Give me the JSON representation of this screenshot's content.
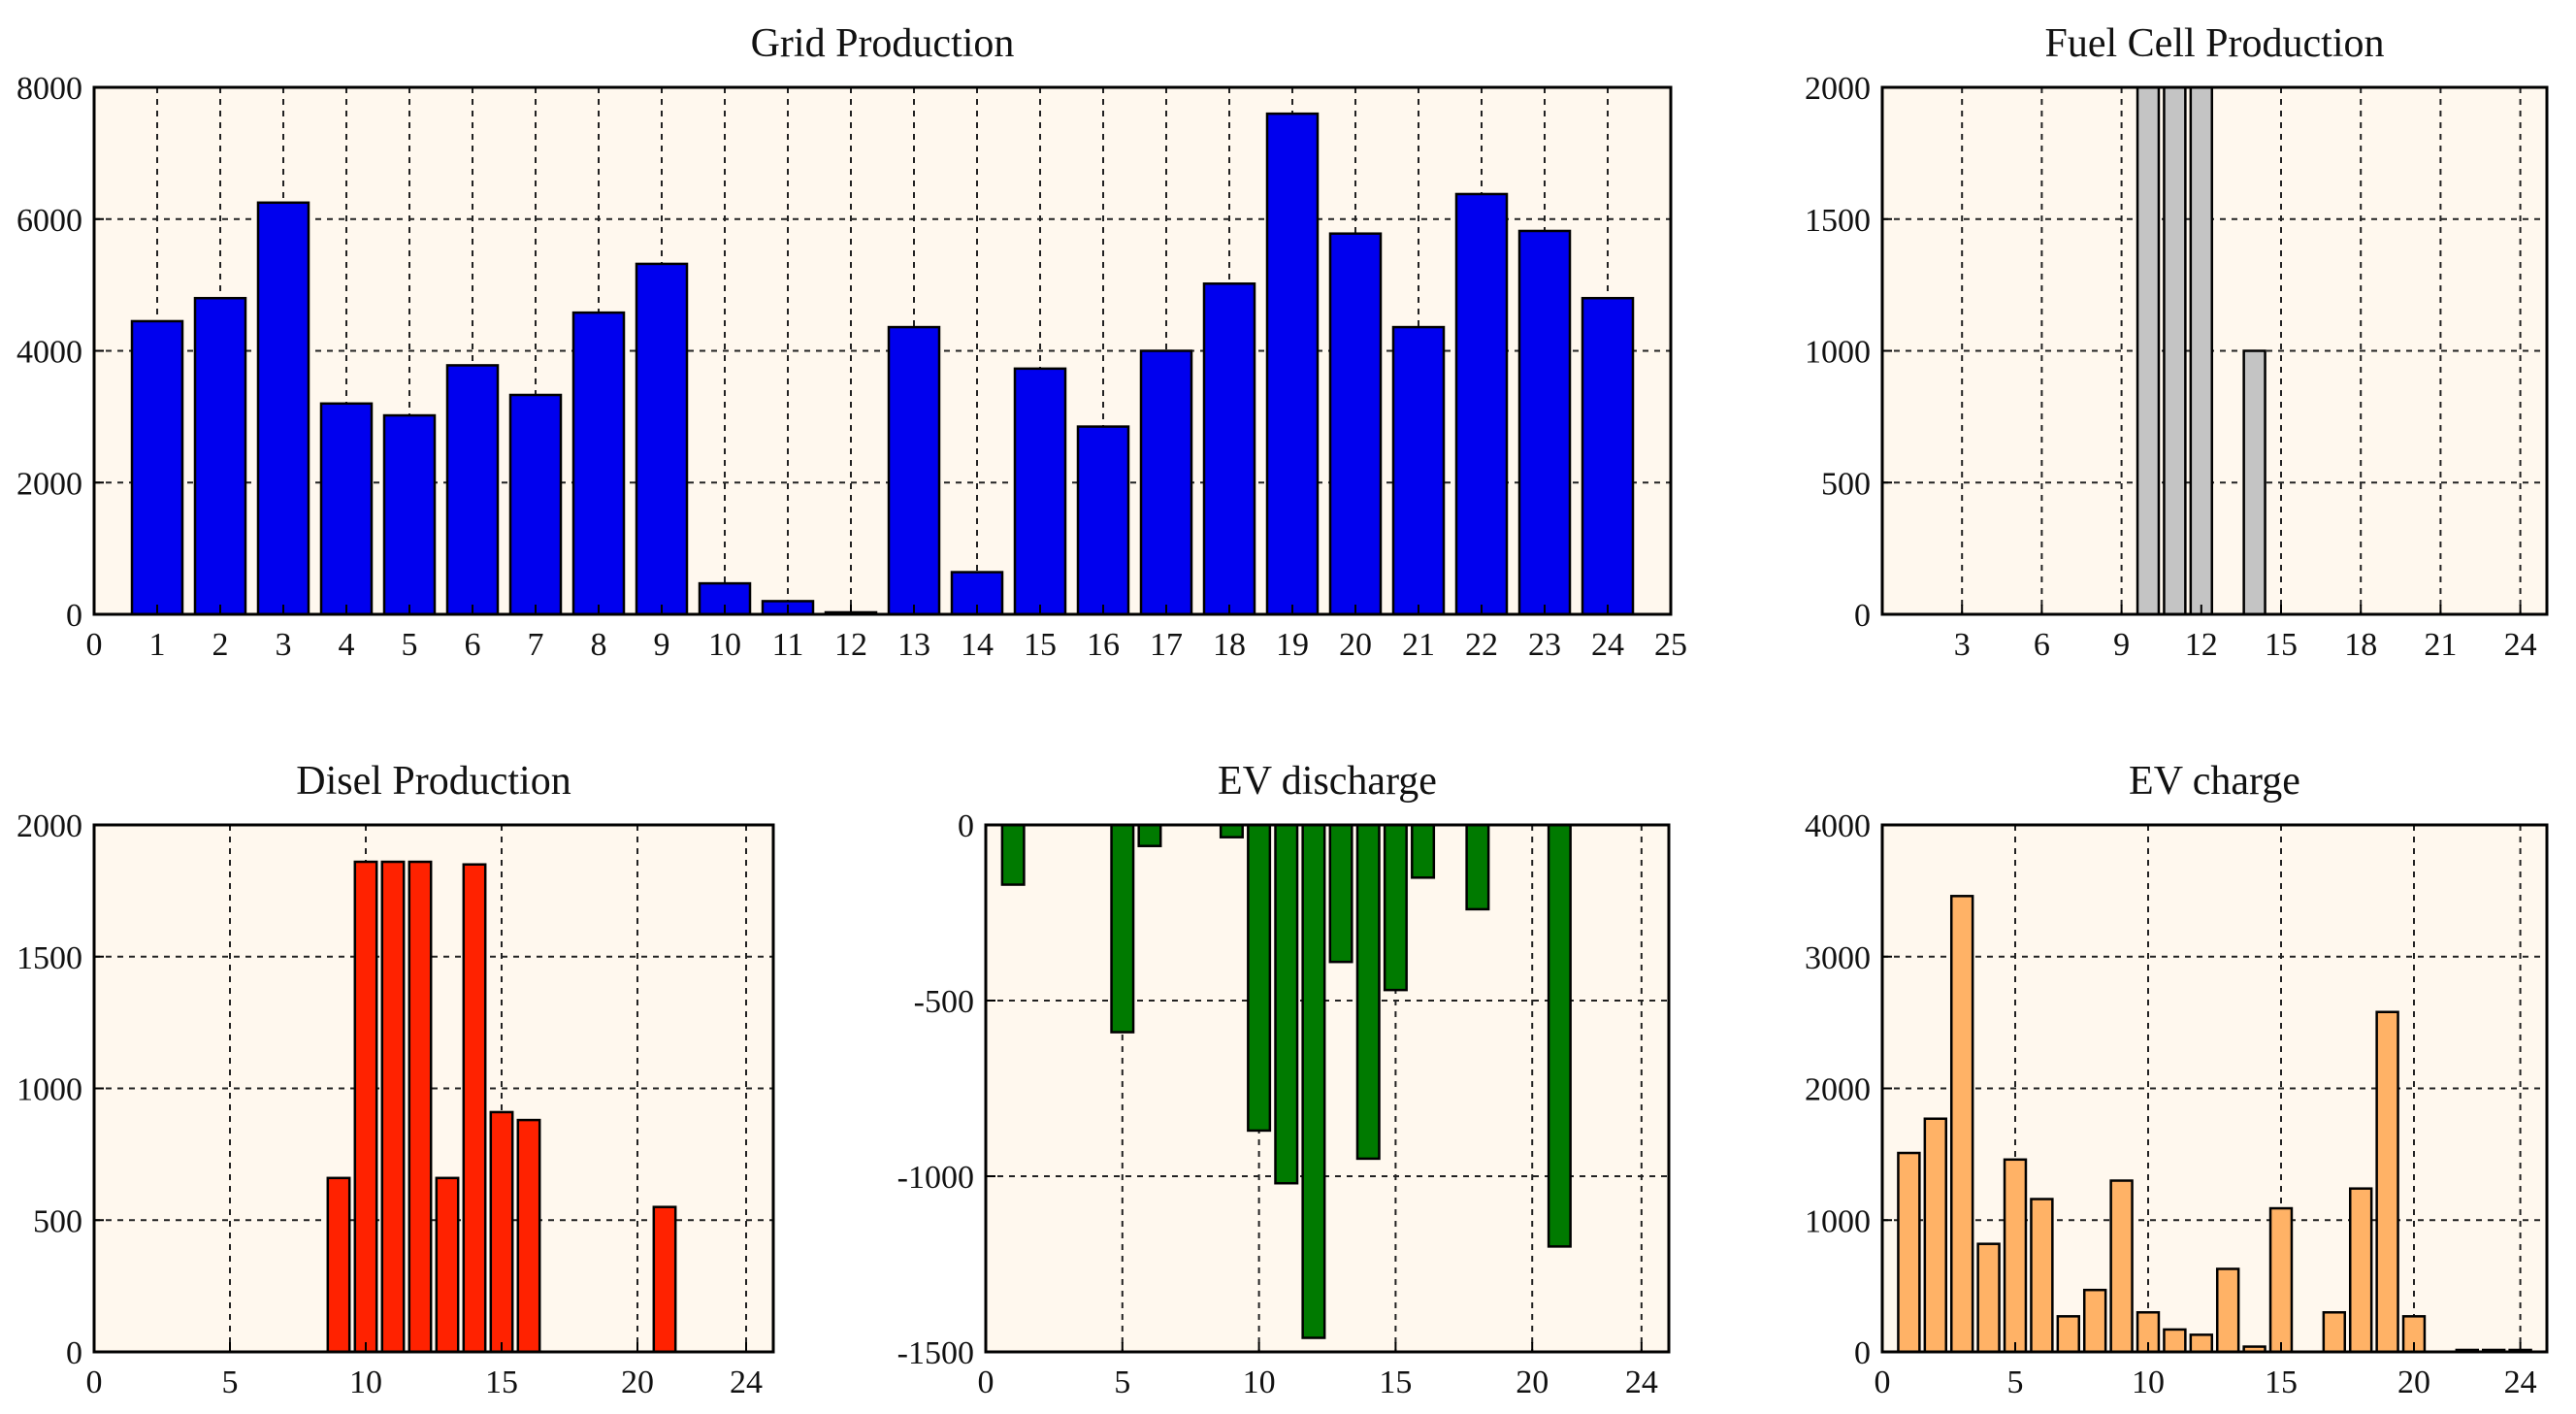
{
  "chart_data": [
    {
      "id": "grid",
      "type": "bar",
      "title": "Grid Production",
      "xlabel": "",
      "ylabel": "",
      "xlim": [
        0,
        25
      ],
      "ylim": [
        0,
        8000
      ],
      "xticks": [
        0,
        1,
        2,
        3,
        4,
        5,
        6,
        7,
        8,
        9,
        10,
        11,
        12,
        13,
        14,
        15,
        16,
        17,
        18,
        19,
        20,
        21,
        22,
        23,
        24,
        25
      ],
      "yticks": [
        0,
        2000,
        4000,
        6000,
        8000
      ],
      "grid": true,
      "bar_color": "#0000ee",
      "x": [
        1,
        2,
        3,
        4,
        5,
        6,
        7,
        8,
        9,
        10,
        11,
        12,
        13,
        14,
        15,
        16,
        17,
        18,
        19,
        20,
        21,
        22,
        23,
        24
      ],
      "values": [
        4450,
        4800,
        6250,
        3200,
        3020,
        3780,
        3330,
        4580,
        5320,
        470,
        200,
        30,
        4360,
        640,
        3730,
        2850,
        4000,
        5020,
        7600,
        5780,
        4360,
        6380,
        5820,
        4800
      ]
    },
    {
      "id": "fuelcell",
      "type": "bar",
      "title": "Fuel Cell Production",
      "xlabel": "",
      "ylabel": "",
      "xlim": [
        0,
        25
      ],
      "ylim": [
        0,
        2000
      ],
      "xticks": [
        3,
        6,
        9,
        12,
        15,
        18,
        21,
        24
      ],
      "yticks": [
        0,
        500,
        1000,
        1500,
        2000
      ],
      "grid": true,
      "bar_color": "#c4c4c4",
      "x": [
        10,
        11,
        12,
        14
      ],
      "values": [
        2000,
        2000,
        2000,
        1000
      ]
    },
    {
      "id": "diesel",
      "type": "bar",
      "title": "Disel Production",
      "xlabel": "",
      "ylabel": "",
      "xlim": [
        0,
        25
      ],
      "ylim": [
        0,
        2000
      ],
      "xticks": [
        0,
        5,
        10,
        15,
        20,
        24
      ],
      "yticks": [
        0,
        500,
        1000,
        1500,
        2000
      ],
      "grid": true,
      "bar_color": "#ff2200",
      "x": [
        9,
        10,
        11,
        12,
        13,
        14,
        15,
        16,
        21
      ],
      "values": [
        660,
        1860,
        1860,
        1860,
        660,
        1850,
        910,
        880,
        550
      ]
    },
    {
      "id": "evdischarge",
      "type": "bar",
      "title": "EV discharge",
      "xlabel": "",
      "ylabel": "",
      "xlim": [
        0,
        25
      ],
      "ylim": [
        -1500,
        0
      ],
      "xticks": [
        0,
        5,
        10,
        15,
        20,
        24
      ],
      "yticks": [
        -1500,
        -1000,
        -500,
        0
      ],
      "grid": true,
      "bar_color": "#007a00",
      "x": [
        1,
        5,
        6,
        9,
        10,
        11,
        12,
        13,
        14,
        15,
        16,
        18,
        21
      ],
      "values": [
        -170,
        -590,
        -60,
        -35,
        -870,
        -1020,
        -1460,
        -390,
        -950,
        -470,
        -150,
        -240,
        -1200
      ]
    },
    {
      "id": "evcharge",
      "type": "bar",
      "title": "EV charge",
      "xlabel": "",
      "ylabel": "",
      "xlim": [
        0,
        25
      ],
      "ylim": [
        0,
        4000
      ],
      "xticks": [
        0,
        5,
        10,
        15,
        20,
        24
      ],
      "yticks": [
        0,
        1000,
        2000,
        3000,
        4000
      ],
      "grid": true,
      "bar_color": "#ffb266",
      "x": [
        1,
        2,
        3,
        4,
        5,
        6,
        7,
        8,
        9,
        10,
        11,
        12,
        13,
        14,
        15,
        17,
        18,
        19,
        20,
        22,
        23,
        24
      ],
      "values": [
        1510,
        1770,
        3460,
        820,
        1460,
        1160,
        270,
        470,
        1300,
        300,
        170,
        130,
        630,
        40,
        1090,
        300,
        1240,
        2580,
        270,
        15,
        15,
        15
      ]
    }
  ]
}
